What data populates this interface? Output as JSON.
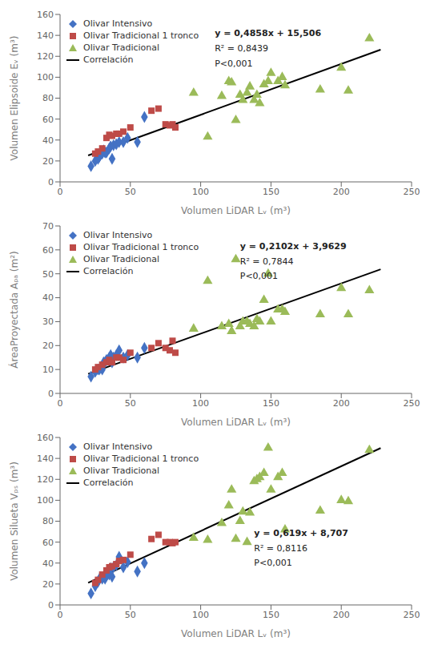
{
  "chart_data": [
    {
      "type": "scatter",
      "xlabel": "Volumen LiDAR Lᵥ (m³)",
      "ylabel": "Volumen Elipsoide Eᵥ (m³)",
      "xlim": [
        0,
        250
      ],
      "ylim": [
        0,
        160
      ],
      "xticks": [
        0,
        50,
        100,
        150,
        200,
        250
      ],
      "yticks": [
        0,
        20,
        40,
        60,
        80,
        100,
        120,
        140,
        160
      ],
      "grid": false,
      "legend": "upper left",
      "series": [
        {
          "name": "Olivar Intensivo",
          "color": "#4472C4",
          "marker": "diamond",
          "x": [
            22,
            25,
            27,
            28,
            30,
            31,
            32,
            33,
            35,
            36,
            37,
            38,
            40,
            42,
            45,
            48,
            55,
            60
          ],
          "values": [
            15,
            20,
            22,
            24,
            27,
            30,
            28,
            28,
            32,
            34,
            22,
            35,
            36,
            38,
            38,
            42,
            38,
            62
          ]
        },
        {
          "name": "Olivar Tradicional 1 tronco",
          "color": "#BE4B48",
          "marker": "square",
          "x": [
            25,
            27,
            30,
            33,
            35,
            37,
            40,
            42,
            45,
            50,
            65,
            70,
            75,
            78,
            80,
            82
          ],
          "values": [
            27,
            29,
            32,
            42,
            45,
            44,
            46,
            46,
            48,
            52,
            68,
            70,
            55,
            54,
            55,
            52
          ]
        },
        {
          "name": "Olivar Tradicional",
          "color": "#9BBB59",
          "marker": "triangle",
          "x": [
            95,
            105,
            115,
            120,
            122,
            125,
            128,
            130,
            133,
            135,
            138,
            140,
            142,
            145,
            148,
            150,
            155,
            158,
            160,
            185,
            200,
            205,
            220
          ],
          "values": [
            85,
            43,
            82,
            96,
            95,
            59,
            83,
            78,
            85,
            91,
            78,
            83,
            75,
            93,
            96,
            104,
            96,
            100,
            92,
            88,
            109,
            87,
            137
          ]
        },
        {
          "name": "Correlación",
          "color": "black",
          "type": "line",
          "line_style": "solid",
          "x": [
            20,
            228
          ],
          "values": [
            25.222,
            126.2684
          ]
        }
      ],
      "annotations": [
        {
          "text": "y = 0,4858x + 15,506",
          "x": 110,
          "y": 145
        },
        {
          "text": "R² = 0,8439",
          "x": 110,
          "y": 130.6
        },
        {
          "text": "P<0,001",
          "x": 110,
          "y": 116.2
        }
      ]
    },
    {
      "type": "scatter",
      "xlabel": "Volumen LiDAR Lᵥ (m³)",
      "ylabel": "ÁreaProyectada Aₚₐ (m²)",
      "xlim": [
        0,
        250
      ],
      "ylim": [
        0,
        70
      ],
      "xticks": [
        0,
        50,
        100,
        150,
        200,
        250
      ],
      "yticks": [
        0,
        10,
        20,
        30,
        40,
        50,
        60,
        70
      ],
      "grid": false,
      "legend": "upper left",
      "series": [
        {
          "name": "Olivar Intensivo",
          "color": "#4472C4",
          "marker": "diamond",
          "x": [
            22,
            25,
            27,
            28,
            30,
            31,
            32,
            33,
            35,
            36,
            37,
            38,
            40,
            42,
            45,
            48,
            55,
            60
          ],
          "values": [
            7,
            9,
            10,
            10,
            10,
            13,
            13,
            14,
            15,
            16,
            13,
            15,
            16,
            18,
            15,
            16,
            15,
            19
          ]
        },
        {
          "name": "Olivar Tradicional 1 tronco",
          "color": "#BE4B48",
          "marker": "square",
          "x": [
            25,
            27,
            30,
            33,
            35,
            37,
            40,
            42,
            45,
            50,
            65,
            70,
            75,
            78,
            80,
            82
          ],
          "values": [
            10,
            11,
            12,
            13,
            14,
            13,
            15,
            15,
            14,
            17,
            19,
            21,
            19,
            18,
            22,
            17
          ]
        },
        {
          "name": "Olivar Tradicional",
          "color": "#9BBB59",
          "marker": "triangle",
          "x": [
            95,
            105,
            115,
            120,
            122,
            125,
            128,
            130,
            133,
            135,
            138,
            140,
            142,
            145,
            148,
            150,
            155,
            158,
            160,
            185,
            200,
            205,
            220
          ],
          "values": [
            27,
            47,
            28,
            29,
            26,
            56,
            28,
            30,
            30,
            29,
            28,
            31,
            30,
            39,
            50,
            30,
            35,
            35,
            34,
            33,
            44,
            33,
            43
          ]
        },
        {
          "name": "Correlación",
          "color": "black",
          "type": "line",
          "line_style": "solid",
          "x": [
            20,
            228
          ],
          "values": [
            8.1669,
            51.8885
          ]
        }
      ],
      "annotations": [
        {
          "text": "y = 0,2102x + 3,9629",
          "x": 128,
          "y": 63
        },
        {
          "text": "R² = 0,7844",
          "x": 128,
          "y": 56.7
        },
        {
          "text": "P<0,001",
          "x": 128,
          "y": 50.4
        }
      ]
    },
    {
      "type": "scatter",
      "xlabel": "Volumen LiDAR Lᵥ (m³)",
      "ylabel": "Volumen Silueta Vₚₛ (m³)",
      "xlim": [
        0,
        250
      ],
      "ylim": [
        0,
        160
      ],
      "xticks": [
        0,
        50,
        100,
        150,
        200,
        250
      ],
      "yticks": [
        0,
        20,
        40,
        60,
        80,
        100,
        120,
        140,
        160
      ],
      "grid": false,
      "legend": "upper left",
      "series": [
        {
          "name": "Olivar Intensivo",
          "color": "#4472C4",
          "marker": "diamond",
          "x": [
            22,
            25,
            27,
            28,
            30,
            31,
            32,
            33,
            35,
            36,
            37,
            38,
            40,
            42,
            45,
            48,
            55,
            60
          ],
          "values": [
            11,
            18,
            22,
            25,
            25,
            27,
            25,
            28,
            29,
            35,
            27,
            36,
            38,
            46,
            36,
            41,
            32,
            40
          ]
        },
        {
          "name": "Olivar Tradicional 1 tronco",
          "color": "#BE4B48",
          "marker": "square",
          "x": [
            25,
            27,
            30,
            33,
            35,
            37,
            40,
            42,
            45,
            50,
            65,
            70,
            75,
            78,
            80,
            82
          ],
          "values": [
            21,
            24,
            29,
            33,
            36,
            37,
            39,
            42,
            43,
            48,
            63,
            67,
            60,
            60,
            59,
            60
          ]
        },
        {
          "name": "Olivar Tradicional",
          "color": "#9BBB59",
          "marker": "triangle",
          "x": [
            95,
            105,
            115,
            120,
            122,
            125,
            128,
            130,
            133,
            135,
            138,
            140,
            142,
            145,
            148,
            150,
            155,
            158,
            160,
            185,
            200,
            205,
            220
          ],
          "values": [
            64,
            62,
            78,
            95,
            110,
            63,
            80,
            89,
            60,
            88,
            118,
            120,
            122,
            126,
            150,
            110,
            122,
            126,
            72,
            90,
            100,
            99,
            148
          ]
        },
        {
          "name": "Correlación",
          "color": "black",
          "type": "line",
          "line_style": "solid",
          "x": [
            20,
            228
          ],
          "values": [
            21.087,
            149.839
          ]
        }
      ],
      "annotations": [
        {
          "text": "y = 0,619x + 8,707",
          "x": 138,
          "y": 72
        },
        {
          "text": "R² = 0,8116",
          "x": 138,
          "y": 57.6
        },
        {
          "text": "P<0,001",
          "x": 138,
          "y": 43.2
        }
      ]
    }
  ]
}
